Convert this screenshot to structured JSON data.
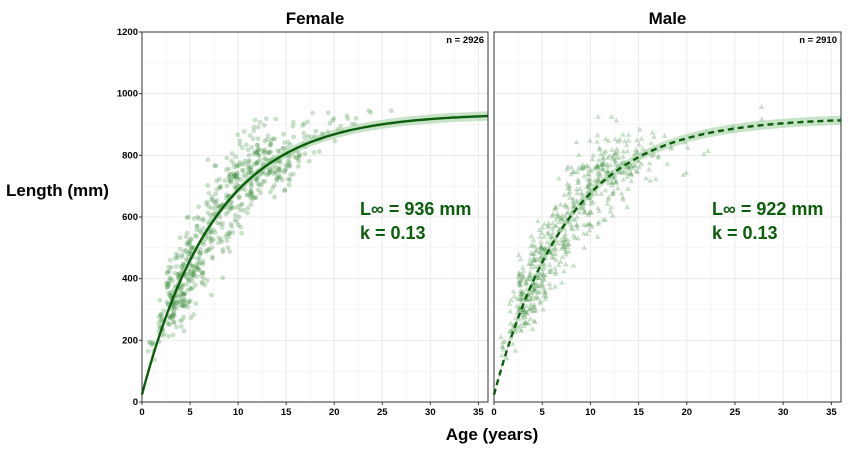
{
  "figure": {
    "ylabel": "Length (mm)",
    "xlabel": "Age (years)",
    "colors": {
      "point": "#3f8f3f",
      "line": "#0b5e0b",
      "ribbon": "#9dcc9d",
      "annotation": "#0b5e0b",
      "grid": "#ebebeb",
      "panel_border": "#333333"
    }
  },
  "chart_data": [
    {
      "type": "scatter",
      "title": "Female",
      "n_label": "n = 2926",
      "linf_text": "L∞ = 936 mm",
      "k_text": "k = 0.13",
      "marker": "circle",
      "fit_line": "solid",
      "vbgf": {
        "linf": 936,
        "k": 0.13,
        "t0": -0.2
      },
      "xlim": [
        0,
        36
      ],
      "ylim": [
        0,
        1200
      ],
      "x_ticks": [
        0,
        5,
        10,
        15,
        20,
        25,
        30,
        35
      ],
      "y_ticks": [
        0,
        200,
        400,
        600,
        800,
        1000,
        1200
      ],
      "point_bands": [
        {
          "age": 1,
          "count": 8,
          "center": 170,
          "spread": 40
        },
        {
          "age": 2,
          "count": 20,
          "center": 250,
          "spread": 70
        },
        {
          "age": 3,
          "count": 65,
          "center": 340,
          "spread": 110
        },
        {
          "age": 4,
          "count": 70,
          "center": 380,
          "spread": 130
        },
        {
          "age": 5,
          "count": 60,
          "center": 440,
          "spread": 150
        },
        {
          "age": 6,
          "count": 45,
          "center": 500,
          "spread": 160
        },
        {
          "age": 7,
          "count": 40,
          "center": 560,
          "spread": 170
        },
        {
          "age": 8,
          "count": 40,
          "center": 620,
          "spread": 170
        },
        {
          "age": 9,
          "count": 42,
          "center": 660,
          "spread": 160
        },
        {
          "age": 10,
          "count": 48,
          "center": 700,
          "spread": 150
        },
        {
          "age": 11,
          "count": 45,
          "center": 730,
          "spread": 140
        },
        {
          "age": 12,
          "count": 42,
          "center": 755,
          "spread": 130
        },
        {
          "age": 13,
          "count": 38,
          "center": 770,
          "spread": 120
        },
        {
          "age": 14,
          "count": 32,
          "center": 780,
          "spread": 110
        },
        {
          "age": 15,
          "count": 28,
          "center": 790,
          "spread": 110
        },
        {
          "age": 16,
          "count": 14,
          "center": 820,
          "spread": 90
        },
        {
          "age": 17,
          "count": 10,
          "center": 850,
          "spread": 80
        },
        {
          "age": 18,
          "count": 7,
          "center": 860,
          "spread": 70
        },
        {
          "age": 19,
          "count": 5,
          "center": 880,
          "spread": 60
        },
        {
          "age": 20,
          "count": 5,
          "center": 890,
          "spread": 60
        },
        {
          "age": 21,
          "count": 4,
          "center": 900,
          "spread": 60
        },
        {
          "age": 22,
          "count": 3,
          "center": 920,
          "spread": 50
        },
        {
          "age": 24,
          "count": 2,
          "center": 930,
          "spread": 40
        },
        {
          "age": 26,
          "count": 1,
          "center": 950,
          "spread": 20
        }
      ]
    },
    {
      "type": "scatter",
      "title": "Male",
      "n_label": "n = 2910",
      "linf_text": "L∞ = 922 mm",
      "k_text": "k = 0.13",
      "marker": "triangle",
      "fit_line": "dashed",
      "vbgf": {
        "linf": 922,
        "k": 0.13,
        "t0": -0.2
      },
      "xlim": [
        0,
        36
      ],
      "ylim": [
        0,
        1200
      ],
      "x_ticks": [
        0,
        5,
        10,
        15,
        20,
        25,
        30,
        35
      ],
      "y_ticks": [
        0,
        200,
        400,
        600,
        800,
        1000,
        1200
      ],
      "point_bands": [
        {
          "age": 1,
          "count": 8,
          "center": 170,
          "spread": 40
        },
        {
          "age": 2,
          "count": 22,
          "center": 260,
          "spread": 80
        },
        {
          "age": 3,
          "count": 70,
          "center": 340,
          "spread": 110
        },
        {
          "age": 4,
          "count": 72,
          "center": 390,
          "spread": 130
        },
        {
          "age": 5,
          "count": 62,
          "center": 450,
          "spread": 150
        },
        {
          "age": 6,
          "count": 48,
          "center": 510,
          "spread": 160
        },
        {
          "age": 7,
          "count": 42,
          "center": 560,
          "spread": 170
        },
        {
          "age": 8,
          "count": 42,
          "center": 620,
          "spread": 170
        },
        {
          "age": 9,
          "count": 42,
          "center": 660,
          "spread": 160
        },
        {
          "age": 10,
          "count": 46,
          "center": 690,
          "spread": 150
        },
        {
          "age": 11,
          "count": 42,
          "center": 720,
          "spread": 140
        },
        {
          "age": 12,
          "count": 40,
          "center": 745,
          "spread": 130
        },
        {
          "age": 13,
          "count": 34,
          "center": 760,
          "spread": 120
        },
        {
          "age": 14,
          "count": 26,
          "center": 770,
          "spread": 110
        },
        {
          "age": 15,
          "count": 18,
          "center": 780,
          "spread": 100
        },
        {
          "age": 16,
          "count": 10,
          "center": 800,
          "spread": 90
        },
        {
          "age": 17,
          "count": 6,
          "center": 820,
          "spread": 80
        },
        {
          "age": 18,
          "count": 4,
          "center": 830,
          "spread": 70
        },
        {
          "age": 20,
          "count": 4,
          "center": 850,
          "spread": 120
        },
        {
          "age": 22,
          "count": 3,
          "center": 870,
          "spread": 60
        },
        {
          "age": 25,
          "count": 2,
          "center": 890,
          "spread": 40
        },
        {
          "age": 28,
          "count": 2,
          "center": 940,
          "spread": 40
        }
      ]
    }
  ]
}
